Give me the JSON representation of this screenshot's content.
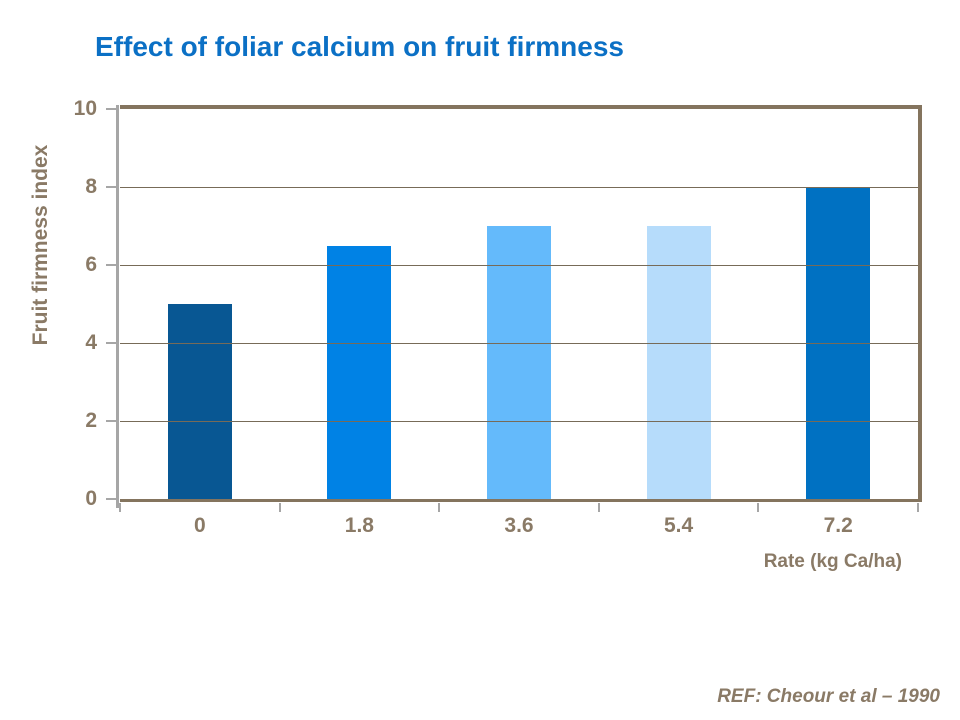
{
  "title": "Effect of foliar calcium on fruit firmness",
  "ref": "REF: Cheour et al – 1990",
  "colors": {
    "title": "#0B70C5",
    "axis_text": "#8A7A66",
    "plot_border": "#84745E",
    "gridline": "#776B58",
    "axis_line": "#A6A6A6"
  },
  "chart_data": {
    "type": "bar",
    "title": "Effect of foliar calcium on fruit firmness",
    "categories": [
      "0",
      "1.8",
      "3.6",
      "5.4",
      "7.2"
    ],
    "values": [
      5,
      6.5,
      7,
      7,
      8
    ],
    "bar_colors": [
      "#085793",
      "#0082E5",
      "#64BAFB",
      "#B6DCFB",
      "#0071C2"
    ],
    "xlabel": "Rate (kg Ca/ha)",
    "ylabel": "Fruit firmness index",
    "ylim": [
      0,
      10
    ],
    "yticks": [
      0,
      2,
      4,
      6,
      8,
      10
    ],
    "grid": true,
    "legend": false
  }
}
